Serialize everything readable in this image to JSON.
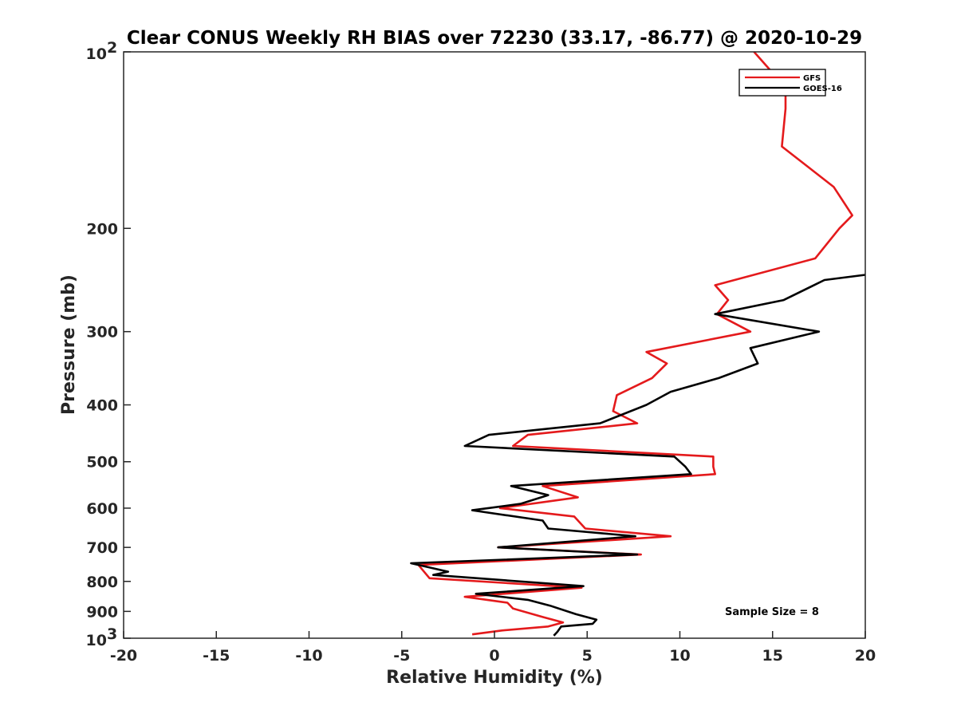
{
  "chart_data": {
    "type": "line",
    "title": "Clear CONUS Weekly RH BIAS over 72230 (33.17, -86.77) @ 2020-10-29",
    "xlabel": "Relative Humidity (%)",
    "ylabel": "Pressure (mb)",
    "xlim": [
      -20,
      20
    ],
    "ylim": [
      100,
      1000
    ],
    "y_scale": "log",
    "y_reversed": true,
    "x_ticks": [
      "-20",
      "-15",
      "-10",
      "-5",
      "0",
      "5",
      "10",
      "15",
      "20"
    ],
    "x_tick_values": [
      -20,
      -15,
      -10,
      -5,
      0,
      5,
      10,
      15,
      20
    ],
    "y_ticks": [
      {
        "value": 100,
        "base": "10",
        "exp": "2"
      },
      {
        "value": 200,
        "label": "200"
      },
      {
        "value": 300,
        "label": "300"
      },
      {
        "value": 400,
        "label": "400"
      },
      {
        "value": 500,
        "label": "500"
      },
      {
        "value": 600,
        "label": "600"
      },
      {
        "value": 700,
        "label": "700"
      },
      {
        "value": 800,
        "label": "800"
      },
      {
        "value": 900,
        "label": "900"
      },
      {
        "value": 1000,
        "base": "10",
        "exp": "3"
      }
    ],
    "legend_position": "top-right",
    "annotation": "Sample Size = 8",
    "colors": {
      "GFS": "#e41a1c",
      "GOES-16": "#000000"
    },
    "series": [
      {
        "name": "GFS",
        "color": "#e41a1c",
        "points": [
          {
            "x": 14.0,
            "y": 100
          },
          {
            "x": 15.7,
            "y": 115
          },
          {
            "x": 15.7,
            "y": 125
          },
          {
            "x": 15.5,
            "y": 145
          },
          {
            "x": 18.3,
            "y": 170
          },
          {
            "x": 19.3,
            "y": 190
          },
          {
            "x": 18.6,
            "y": 200
          },
          {
            "x": 17.3,
            "y": 225
          },
          {
            "x": 11.9,
            "y": 250
          },
          {
            "x": 12.6,
            "y": 265
          },
          {
            "x": 12.0,
            "y": 280
          },
          {
            "x": 13.8,
            "y": 300
          },
          {
            "x": 8.2,
            "y": 325
          },
          {
            "x": 9.3,
            "y": 340
          },
          {
            "x": 8.5,
            "y": 360
          },
          {
            "x": 6.6,
            "y": 385
          },
          {
            "x": 6.4,
            "y": 410
          },
          {
            "x": 7.7,
            "y": 430
          },
          {
            "x": 1.8,
            "y": 450
          },
          {
            "x": 1.0,
            "y": 470
          },
          {
            "x": 11.8,
            "y": 490
          },
          {
            "x": 11.8,
            "y": 510
          },
          {
            "x": 11.9,
            "y": 525
          },
          {
            "x": 2.6,
            "y": 550
          },
          {
            "x": 4.5,
            "y": 575
          },
          {
            "x": 0.3,
            "y": 600
          },
          {
            "x": 4.3,
            "y": 620
          },
          {
            "x": 4.9,
            "y": 650
          },
          {
            "x": 9.5,
            "y": 670
          },
          {
            "x": 0.2,
            "y": 700
          },
          {
            "x": 7.9,
            "y": 720
          },
          {
            "x": -4.1,
            "y": 750
          },
          {
            "x": -3.5,
            "y": 790
          },
          {
            "x": 4.7,
            "y": 820
          },
          {
            "x": -1.6,
            "y": 850
          },
          {
            "x": 0.7,
            "y": 870
          },
          {
            "x": 1.0,
            "y": 890
          },
          {
            "x": 2.6,
            "y": 920
          },
          {
            "x": 3.7,
            "y": 940
          },
          {
            "x": 2.9,
            "y": 955
          },
          {
            "x": 0.4,
            "y": 970
          },
          {
            "x": -1.2,
            "y": 985
          }
        ]
      },
      {
        "name": "GOES-16",
        "color": "#000000",
        "points": [
          {
            "x": 20.0,
            "y": 240
          },
          {
            "x": 17.8,
            "y": 245
          },
          {
            "x": 15.6,
            "y": 265
          },
          {
            "x": 11.9,
            "y": 280
          },
          {
            "x": 17.5,
            "y": 300
          },
          {
            "x": 13.8,
            "y": 320
          },
          {
            "x": 14.2,
            "y": 340
          },
          {
            "x": 12.1,
            "y": 360
          },
          {
            "x": 9.5,
            "y": 380
          },
          {
            "x": 8.2,
            "y": 400
          },
          {
            "x": 5.7,
            "y": 430
          },
          {
            "x": -0.3,
            "y": 450
          },
          {
            "x": -1.6,
            "y": 470
          },
          {
            "x": 9.7,
            "y": 490
          },
          {
            "x": 10.3,
            "y": 510
          },
          {
            "x": 10.6,
            "y": 525
          },
          {
            "x": 0.9,
            "y": 550
          },
          {
            "x": 2.9,
            "y": 570
          },
          {
            "x": 1.4,
            "y": 590
          },
          {
            "x": -1.2,
            "y": 605
          },
          {
            "x": 2.6,
            "y": 630
          },
          {
            "x": 2.9,
            "y": 650
          },
          {
            "x": 7.6,
            "y": 670
          },
          {
            "x": 0.2,
            "y": 700
          },
          {
            "x": 7.7,
            "y": 720
          },
          {
            "x": -4.5,
            "y": 745
          },
          {
            "x": -2.5,
            "y": 770
          },
          {
            "x": -3.3,
            "y": 780
          },
          {
            "x": 4.8,
            "y": 815
          },
          {
            "x": -1.0,
            "y": 840
          },
          {
            "x": 1.8,
            "y": 860
          },
          {
            "x": 3.0,
            "y": 880
          },
          {
            "x": 4.4,
            "y": 910
          },
          {
            "x": 5.5,
            "y": 930
          },
          {
            "x": 5.3,
            "y": 945
          },
          {
            "x": 3.6,
            "y": 955
          },
          {
            "x": 3.4,
            "y": 975
          },
          {
            "x": 3.2,
            "y": 990
          }
        ]
      }
    ]
  }
}
